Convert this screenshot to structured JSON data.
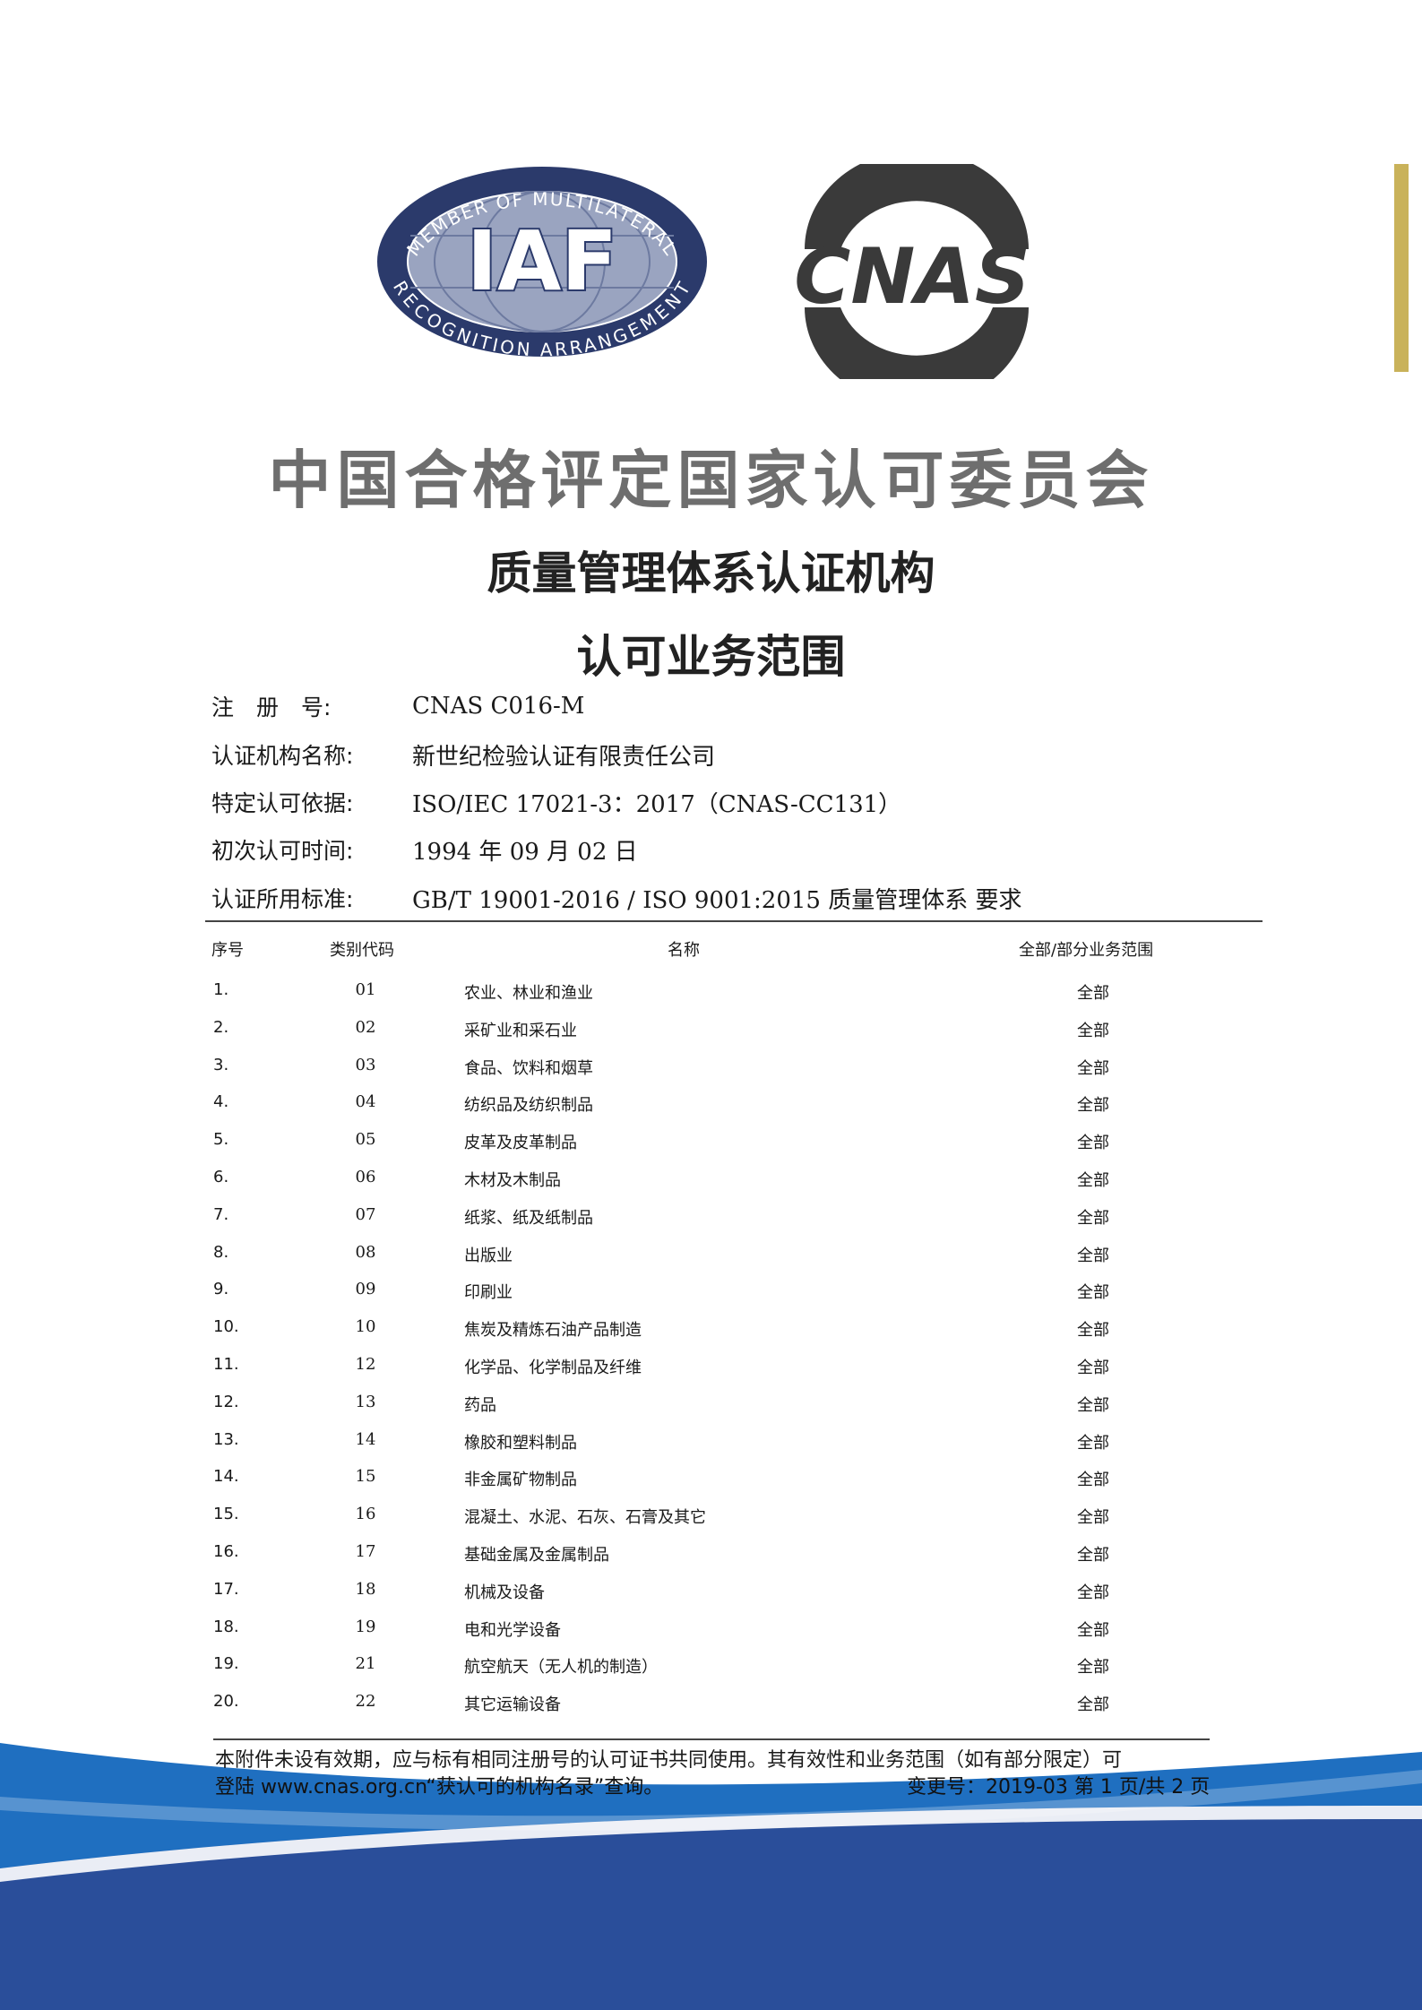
{
  "logos": {
    "iaf_text": "IAF",
    "iaf_ring_top": "MEMBER OF MULTILATERAL",
    "iaf_ring_bottom": "RECOGNITION ARRANGEMENT",
    "cnas_text": "CNAS"
  },
  "title": "中国合格评定国家认可委员会",
  "subtitle1": "质量管理体系认证机构",
  "subtitle2": "认可业务范围",
  "info": [
    {
      "label": "注　册　号:",
      "value": "CNAS C016-M"
    },
    {
      "label": "认证机构名称:",
      "value": "新世纪检验认证有限责任公司"
    },
    {
      "label": "特定认可依据:",
      "value": "ISO/IEC 17021-3：2017（CNAS-CC131）"
    },
    {
      "label": "初次认可时间:",
      "value": "1994 年 09 月 02 日"
    },
    {
      "label": "认证所用标准:",
      "value": "GB/T 19001-2016 / ISO 9001:2015 质量管理体系 要求"
    }
  ],
  "table": {
    "headers": [
      "序号",
      "类别代码",
      "名称",
      "全部/部分业务范围"
    ],
    "rows": [
      [
        "1.",
        "01",
        "农业、林业和渔业",
        "全部"
      ],
      [
        "2.",
        "02",
        "采矿业和采石业",
        "全部"
      ],
      [
        "3.",
        "03",
        "食品、饮料和烟草",
        "全部"
      ],
      [
        "4.",
        "04",
        "纺织品及纺织制品",
        "全部"
      ],
      [
        "5.",
        "05",
        "皮革及皮革制品",
        "全部"
      ],
      [
        "6.",
        "06",
        "木材及木制品",
        "全部"
      ],
      [
        "7.",
        "07",
        "纸浆、纸及纸制品",
        "全部"
      ],
      [
        "8.",
        "08",
        "出版业",
        "全部"
      ],
      [
        "9.",
        "09",
        "印刷业",
        "全部"
      ],
      [
        "10.",
        "10",
        "焦炭及精炼石油产品制造",
        "全部"
      ],
      [
        "11.",
        "12",
        "化学品、化学制品及纤维",
        "全部"
      ],
      [
        "12.",
        "13",
        "药品",
        "全部"
      ],
      [
        "13.",
        "14",
        "橡胶和塑料制品",
        "全部"
      ],
      [
        "14.",
        "15",
        "非金属矿物制品",
        "全部"
      ],
      [
        "15.",
        "16",
        "混凝土、水泥、石灰、石膏及其它",
        "全部"
      ],
      [
        "16.",
        "17",
        "基础金属及金属制品",
        "全部"
      ],
      [
        "17.",
        "18",
        "机械及设备",
        "全部"
      ],
      [
        "18.",
        "19",
        "电和光学设备",
        "全部"
      ],
      [
        "19.",
        "21",
        "航空航天（无人机的制造）",
        "全部"
      ],
      [
        "20.",
        "22",
        "其它运输设备",
        "全部"
      ]
    ]
  },
  "footer": {
    "line1": "本附件未设有效期，应与标有相同注册号的认可证书共同使用。其有效性和业务范围（如有部分限定）可",
    "line2": "登陆 www.cnas.org.cn“获认可的机构名录”查询。",
    "page_info": "变更号：2019-03 第 1 页/共 2 页"
  },
  "colors": {
    "accent_blue": "#1f6fc0",
    "iaf_navy": "#2b3a6b",
    "cnas_gray": "#3a3a3a",
    "bar_yellow": "#c9b25a"
  }
}
